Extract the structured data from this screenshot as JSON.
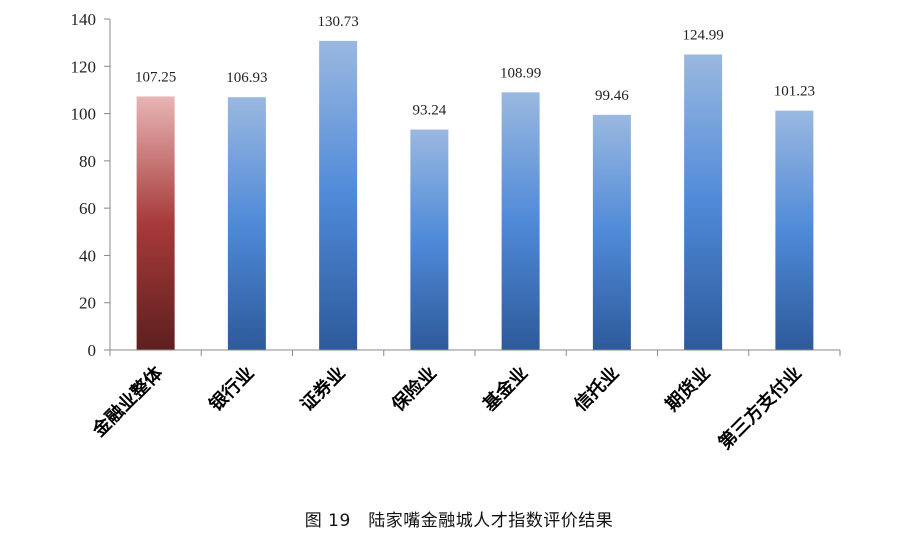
{
  "caption": "图 19　陆家嘴金融城人才指数评价结果",
  "chart_data": {
    "type": "bar",
    "categories": [
      "金融业整体",
      "银行业",
      "证券业",
      "保险业",
      "基金业",
      "信托业",
      "期货业",
      "第三方支付业"
    ],
    "values": [
      107.25,
      106.93,
      130.73,
      93.24,
      108.99,
      99.46,
      124.99,
      101.23
    ],
    "value_labels": [
      "107.25",
      "106.93",
      "130.73",
      "93.24",
      "108.99",
      "99.46",
      "124.99",
      "101.23"
    ],
    "title": "",
    "xlabel": "",
    "ylabel": "",
    "ylim": [
      0,
      140
    ],
    "yticks": [
      0,
      20,
      40,
      60,
      80,
      100,
      120,
      140
    ],
    "grid": false,
    "legend": "none",
    "colors": {
      "highlight_top": "#e8b5b5",
      "highlight_mid": "#a83a3a",
      "highlight_bottom": "#5e1f1f",
      "bar_top": "#9ab8e0",
      "bar_mid": "#4f8ad8",
      "bar_bottom": "#2d5a9a",
      "axis": "#888888"
    },
    "highlight_index": 0
  }
}
